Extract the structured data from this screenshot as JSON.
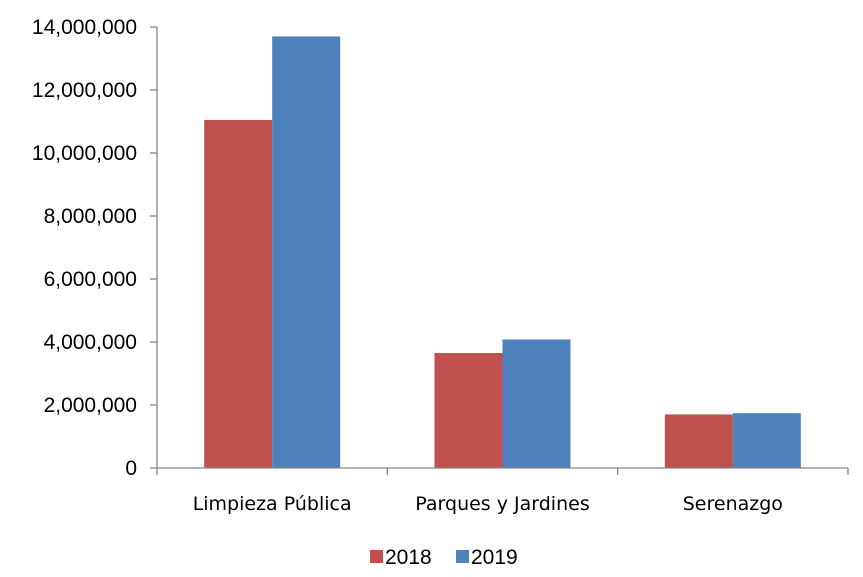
{
  "chart_data": {
    "type": "bar",
    "title": "",
    "xlabel": "",
    "ylabel": "",
    "categories": [
      "Limpieza Pública",
      "Parques y Jardines",
      "Serenazgo"
    ],
    "series": [
      {
        "name": "2018",
        "color": "#c0504d",
        "values": [
          11050000,
          3650000,
          1700000
        ]
      },
      {
        "name": "2019",
        "color": "#4f81bd",
        "values": [
          13700000,
          4080000,
          1740000
        ]
      }
    ],
    "ylim": [
      0,
      14000000
    ],
    "yticks": [
      0,
      2000000,
      4000000,
      6000000,
      8000000,
      10000000,
      12000000,
      14000000
    ],
    "ytick_labels": [
      "0",
      "2,000,000",
      "4,000,000",
      "6,000,000",
      "8,000,000",
      "10,000,000",
      "12,000,000",
      "14,000,000"
    ],
    "grid": false,
    "legend_position": "bottom"
  }
}
